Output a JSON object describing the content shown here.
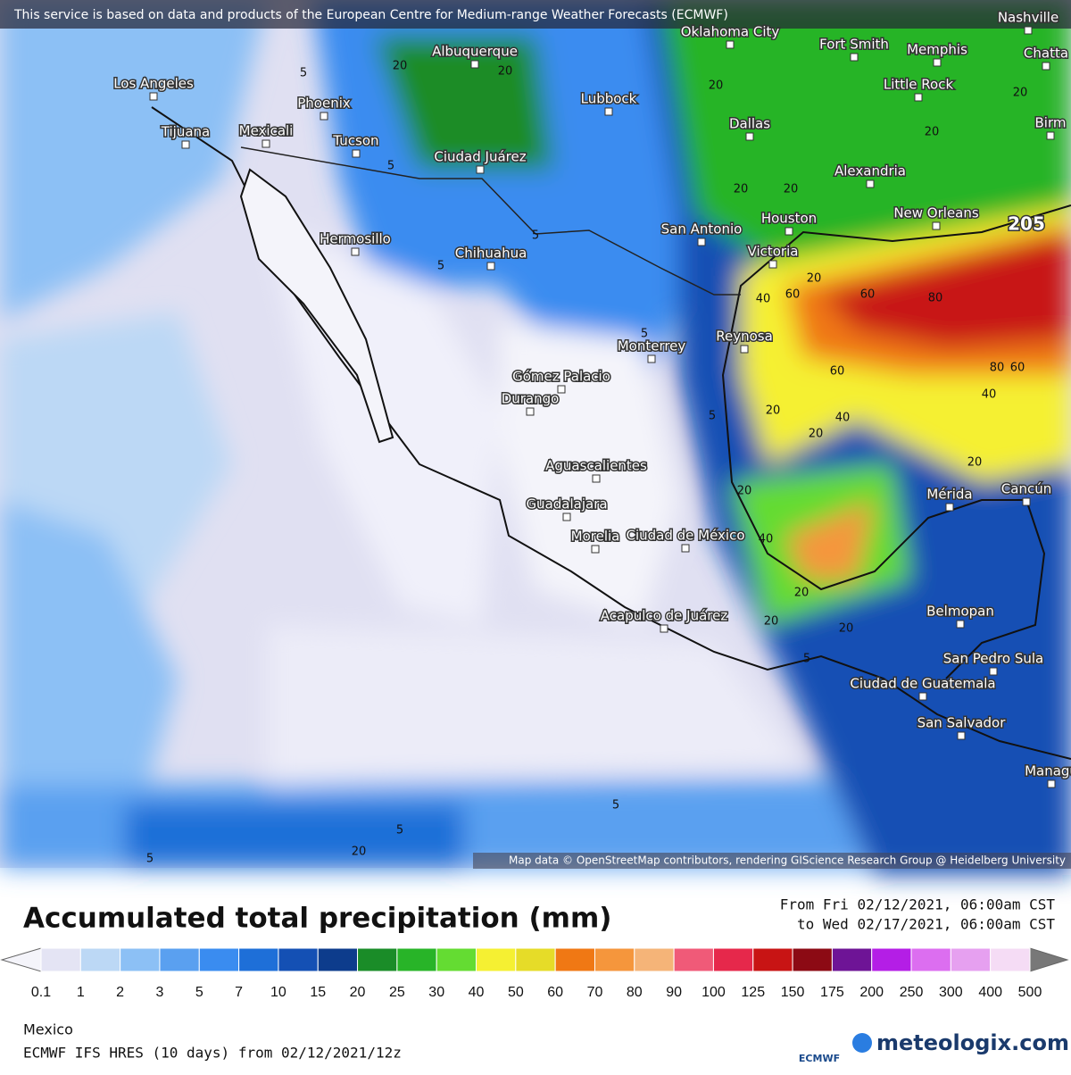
{
  "attribution": "This service is based on data and products of the European Centre for Medium-range Weather Forecasts (ECMWF)",
  "map_credit": "Map data © OpenStreetMap contributors, rendering GIScience Research Group @ Heidelberg University",
  "cities": [
    "Nashville",
    "Oklahoma City",
    "Fort Smith",
    "Memphis",
    "Chatta",
    "Albuquerque",
    "Los Angeles",
    "Phoenix",
    "Lubbock",
    "Little Rock",
    "Birm",
    "Tijuana",
    "Mexicali",
    "Tucson",
    "Dallas",
    "Ciudad Juárez",
    "Alexandria",
    "New Orleans",
    "Houston",
    "San Antonio",
    "Victoria",
    "Hermosillo",
    "Chihuahua",
    "Monterrey",
    "Reynosa",
    "Gómez Palacio",
    "Durango",
    "Aguascalientes",
    "Mérida",
    "Cancún",
    "Guadalajara",
    "Ciudad de México",
    "Morelia",
    "Belmopan",
    "Acapulco de Juárez",
    "San Pedro Sula",
    "Ciudad de Guatemala",
    "San Salvador",
    "Managu"
  ],
  "max_label": 205,
  "contour_labels": [
    5,
    20,
    20,
    5,
    20,
    20,
    20,
    20,
    20,
    5,
    5,
    20,
    40,
    60,
    60,
    80,
    60,
    80,
    60,
    40,
    40,
    20,
    20,
    20,
    5,
    20,
    40,
    20,
    20,
    20,
    5,
    5,
    5,
    20,
    5,
    5
  ],
  "title": "Accumulated total precipitation (mm)",
  "period": {
    "from": "From Fri 02/12/2021, 06:00am CST",
    "to": "to Wed 02/17/2021, 06:00am CST"
  },
  "legend": {
    "ticks": [
      0.1,
      1,
      2,
      3,
      5,
      7,
      10,
      15,
      20,
      25,
      30,
      40,
      50,
      60,
      70,
      80,
      90,
      100,
      125,
      150,
      175,
      200,
      250,
      300,
      400,
      500
    ],
    "colors": [
      "#e4e4f4",
      "#bcd8f5",
      "#8cc0f5",
      "#5aa0f0",
      "#3a8cf0",
      "#1e6fd8",
      "#1450b4",
      "#0d3c8c",
      "#1a8c28",
      "#28b428",
      "#64dc32",
      "#f5f032",
      "#e6dc28",
      "#f07814",
      "#f5963c",
      "#f5b478",
      "#f05a78",
      "#e6284b",
      "#c81414",
      "#8c0a14",
      "#6e1496",
      "#b41ee6",
      "#dc6ef0",
      "#e6a0f0",
      "#f5dcf5",
      "#c8c8c8"
    ],
    "under_color": "#f4f4fa",
    "over_color": "#787878"
  },
  "region": "Mexico",
  "model": "ECMWF IFS HRES (10 days) from 02/12/2021/12z",
  "logos": {
    "ecmwf": "ECMWF",
    "brand": "meteologix.com"
  }
}
